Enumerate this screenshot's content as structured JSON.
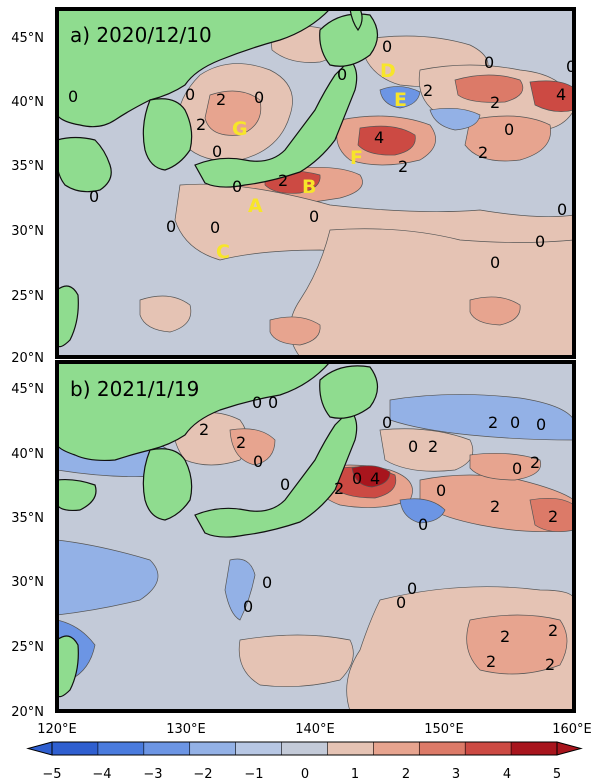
{
  "figure": {
    "panels": [
      {
        "title": "a) 2020/12/10",
        "markers": [
          "A",
          "B",
          "C",
          "D",
          "E",
          "F",
          "G"
        ],
        "contour_labels": [
          "0",
          "2",
          "4"
        ]
      },
      {
        "title": "b) 2021/1/19",
        "contour_labels": [
          "0",
          "2",
          "4"
        ]
      }
    ],
    "lat_ticks": [
      "45°N",
      "40°N",
      "35°N",
      "30°N",
      "25°N",
      "20°N"
    ],
    "lon_ticks": [
      "120°E",
      "130°E",
      "140°E",
      "150°E",
      "160°E"
    ],
    "colorbar": {
      "ticks": [
        "−5",
        "−4",
        "−3",
        "−2",
        "−1",
        "0",
        "1",
        "2",
        "3",
        "4",
        "5"
      ],
      "colors": [
        "#2f5fd0",
        "#4a7bde",
        "#6c95e4",
        "#93b1e6",
        "#b7c7e4",
        "#c3cad8",
        "#e5c3b4",
        "#e7a48f",
        "#dc7a68",
        "#cc4a43",
        "#a8151d"
      ]
    },
    "colors": {
      "land": "#8fdc8f",
      "ocean": "#c3cad8",
      "marker": "#f7e52a"
    }
  }
}
